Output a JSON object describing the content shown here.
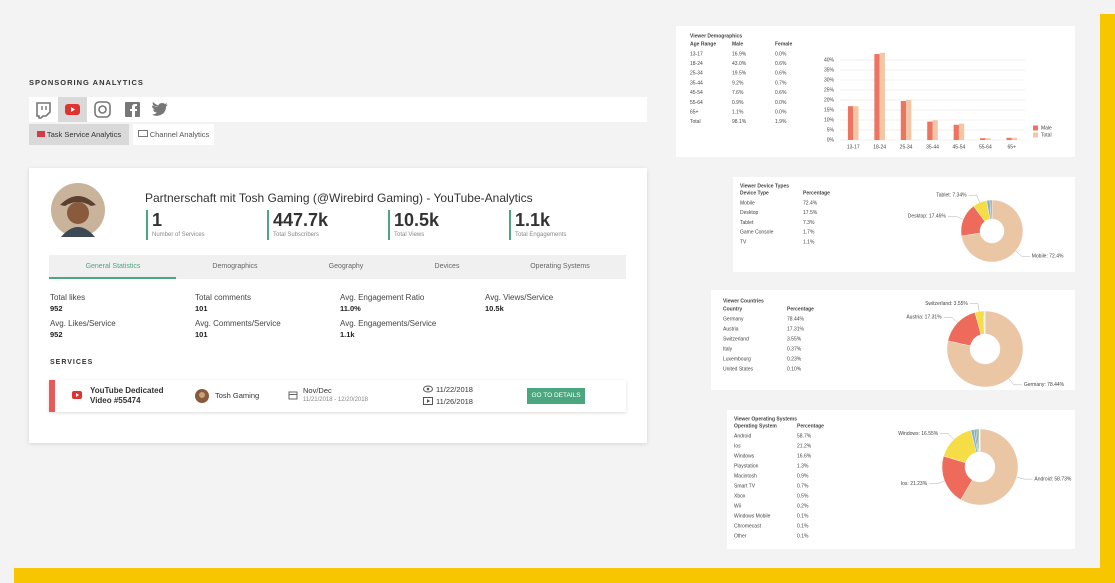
{
  "app": {
    "section_title": "SPONSORING ANALYTICS",
    "view_tabs": [
      "Task Service Analytics",
      "Channel Analytics"
    ],
    "card": {
      "title": "Partnerschaft mit Tosh Gaming (@Wirebird Gaming) - YouTube-Analytics",
      "kpis": [
        {
          "value": "1",
          "label": "Number of Services"
        },
        {
          "value": "447.7k",
          "label": "Total Subscribers"
        },
        {
          "value": "10.5k",
          "label": "Total Views"
        },
        {
          "value": "1.1k",
          "label": "Total Engagements"
        }
      ],
      "tabs": [
        "General Statistics",
        "Demographics",
        "Geography",
        "Devices",
        "Operating Systems"
      ],
      "stats": [
        {
          "label": "Total likes",
          "value": "952"
        },
        {
          "label": "Total comments",
          "value": "101"
        },
        {
          "label": "Avg. Engagement Ratio",
          "value": "11.0%"
        },
        {
          "label": "Avg. Views/Service",
          "value": "10.5k"
        },
        {
          "label": "Avg. Likes/Service",
          "value": "952"
        },
        {
          "label": "Avg. Comments/Service",
          "value": "101"
        },
        {
          "label": "Avg. Engagements/Service",
          "value": "1.1k"
        }
      ],
      "services_heading": "SERVICES",
      "service": {
        "name": "YouTube Dedicated Video #55474",
        "channel": "Tosh Gaming",
        "period": "Nov/Dec",
        "period_range": "11/21/2018 - 12/20/2018",
        "published": "11/22/2018",
        "tracked": "11/26/2018",
        "action": "GO TO DETAILS"
      }
    }
  },
  "chart_data": [
    {
      "type": "bar",
      "title": "Viewer Demographics",
      "table": {
        "headers": [
          "Age Range",
          "Male",
          "Female"
        ],
        "rows": [
          [
            "13-17",
            "16.9%",
            "0.0%"
          ],
          [
            "18-24",
            "43.0%",
            "0.6%"
          ],
          [
            "25-34",
            "19.5%",
            "0.6%"
          ],
          [
            "35-44",
            "9.2%",
            "0.7%"
          ],
          [
            "45-54",
            "7.6%",
            "0.6%"
          ],
          [
            "55-64",
            "0.9%",
            "0.0%"
          ],
          [
            "65+",
            "1.1%",
            "0.0%"
          ],
          [
            "Total",
            "98.1%",
            "1.9%"
          ]
        ]
      },
      "categories": [
        "13-17",
        "18-24",
        "25-34",
        "35-44",
        "45-54",
        "55-64",
        "65+"
      ],
      "series": [
        {
          "name": "Male",
          "color": "#ee7360",
          "values": [
            16.9,
            43.0,
            19.5,
            9.2,
            7.6,
            0.9,
            1.1
          ]
        },
        {
          "name": "Total",
          "color": "#f2c7a6",
          "values": [
            16.9,
            43.6,
            20.1,
            9.9,
            8.2,
            0.9,
            1.1
          ]
        }
      ],
      "ylim": [
        0,
        45
      ],
      "yticks": [
        {
          "value": 0,
          "label": "0%"
        },
        {
          "value": 5,
          "label": "5%"
        },
        {
          "value": 10,
          "label": "10%"
        },
        {
          "value": 15,
          "label": "15%"
        },
        {
          "value": 20,
          "label": "20%"
        },
        {
          "value": 25,
          "label": "25%"
        },
        {
          "value": 30,
          "label": "30%"
        },
        {
          "value": 35,
          "label": "35%"
        },
        {
          "value": 40,
          "label": "40%"
        }
      ],
      "grid": true,
      "legend": "right"
    },
    {
      "type": "donut",
      "title": "Viewer Device Types",
      "table": {
        "headers": [
          "Device Type",
          "Percentage"
        ],
        "rows": [
          [
            "Mobile",
            "72.4%"
          ],
          [
            "Desktop",
            "17.5%"
          ],
          [
            "Tablet",
            "7.3%"
          ],
          [
            "Game Console",
            "1.7%"
          ],
          [
            "TV",
            "1.1%"
          ]
        ]
      },
      "categories": [
        "Mobile",
        "Desktop",
        "Tablet",
        "Game Console",
        "TV"
      ],
      "values": [
        72.4,
        17.46,
        7.34,
        1.7,
        1.1
      ],
      "value_labels": [
        "Mobile: 72.4%",
        "Desktop: 17.46%",
        "Tablet: 7.34%",
        null,
        null
      ],
      "colors": [
        "#ebc6a5",
        "#ee6b5b",
        "#f6dc45",
        "#7fb3d5",
        "#9aa5ad"
      ]
    },
    {
      "type": "donut",
      "title": "Viewer Countries",
      "table": {
        "headers": [
          "Country",
          "Percentage"
        ],
        "rows": [
          [
            "Germany",
            "78.44%"
          ],
          [
            "Austria",
            "17.31%"
          ],
          [
            "Switzerland",
            "3.55%"
          ],
          [
            "Italy",
            "0.37%"
          ],
          [
            "Luxembourg",
            "0.23%"
          ],
          [
            "United States",
            "0.10%"
          ]
        ]
      },
      "categories": [
        "Germany",
        "Austria",
        "Switzerland",
        "Italy",
        "Luxembourg",
        "United States"
      ],
      "values": [
        78.44,
        17.31,
        3.55,
        0.37,
        0.23,
        0.1
      ],
      "value_labels": [
        "Germany: 78.44%",
        "Austria: 17.31%",
        "Switzerland: 3.55%",
        null,
        null,
        null
      ],
      "colors": [
        "#ebc6a5",
        "#ee6b5b",
        "#f6dc45",
        "#7fb3d5",
        "#9aa5ad",
        "#5aa77f"
      ]
    },
    {
      "type": "donut",
      "title": "Viewer Operating Systems",
      "table": {
        "headers": [
          "Operating System",
          "Percentage"
        ],
        "rows": [
          [
            "Android",
            "58.7%"
          ],
          [
            "Ios",
            "21.2%"
          ],
          [
            "Windows",
            "16.6%"
          ],
          [
            "Playstation",
            "1.3%"
          ],
          [
            "Macintosh",
            "0.9%"
          ],
          [
            "Smart TV",
            "0.7%"
          ],
          [
            "Xbox",
            "0.5%"
          ],
          [
            "Wii",
            "0.2%"
          ],
          [
            "Windows Mobile",
            "0.1%"
          ],
          [
            "Chromecast",
            "0.1%"
          ],
          [
            "Other",
            "0.1%"
          ]
        ]
      },
      "categories": [
        "Android",
        "Ios",
        "Windows",
        "Playstation",
        "Macintosh",
        "Smart TV",
        "Xbox",
        "Wii",
        "Windows Mobile",
        "Chromecast",
        "Other"
      ],
      "values": [
        58.73,
        21.23,
        16.55,
        1.3,
        0.9,
        0.7,
        0.5,
        0.2,
        0.1,
        0.1,
        0.1
      ],
      "value_labels": [
        "Android: 58.73%",
        "Ios: 21.23%",
        "Windows: 16.55%",
        null,
        null,
        null,
        null,
        null,
        null,
        null,
        null
      ],
      "colors": [
        "#ebc6a5",
        "#ee6b5b",
        "#f6dc45",
        "#7fb3d5",
        "#9aa5ad",
        "#5aa77f",
        "#4c8f6c",
        "#c79bd0",
        "#8ab6dd",
        "#d99a66",
        "#cccccc"
      ]
    }
  ]
}
